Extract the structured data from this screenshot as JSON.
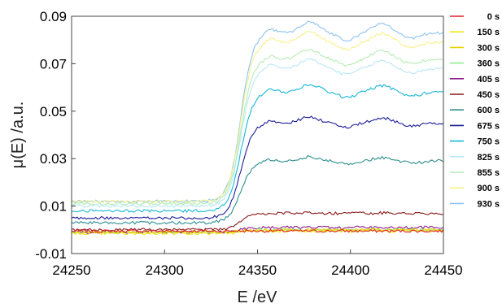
{
  "chart_data": {
    "type": "line",
    "xlabel": "E /eV",
    "ylabel": "μ(E) /a.u.",
    "xlim": [
      24250,
      24450
    ],
    "ylim": [
      -0.01,
      0.09
    ],
    "xticks": [
      "24250",
      "24300",
      "24350",
      "24400",
      "24450"
    ],
    "yticks": [
      "-0.01",
      "0.01",
      "0.03",
      "0.05",
      "0.07",
      "0.09"
    ],
    "grid": false,
    "legend_position": "right",
    "series": [
      {
        "name": "0 s",
        "color": "#e0202a",
        "pre": -0.0005,
        "post": -0.0005,
        "shape": 0.0
      },
      {
        "name": "150 s",
        "color": "#f2e610",
        "pre": -0.0015,
        "post": -0.0005,
        "shape": 0.0
      },
      {
        "name": "300 s",
        "color": "#e8d000",
        "pre": -0.001,
        "post": 0.0,
        "shape": 0.0
      },
      {
        "name": "360 s",
        "color": "#90ee90",
        "pre": -0.001,
        "post": 0.0,
        "shape": 0.0
      },
      {
        "name": "405 s",
        "color": "#8b1a8b",
        "pre": -0.001,
        "post": 0.001,
        "shape": 0.0
      },
      {
        "name": "450 s",
        "color": "#8b1a1a",
        "pre": 0.0,
        "post": 0.007,
        "shape": 0.3
      },
      {
        "name": "600 s",
        "color": "#2f8f8f",
        "pre": 0.003,
        "post": 0.029,
        "shape": 1.0
      },
      {
        "name": "675 s",
        "color": "#1c1c9a",
        "pre": 0.005,
        "post": 0.045,
        "shape": 1.0
      },
      {
        "name": "750 s",
        "color": "#17b7d6",
        "pre": 0.008,
        "post": 0.058,
        "shape": 1.0
      },
      {
        "name": "825 s",
        "color": "#b9e8f5",
        "pre": 0.01,
        "post": 0.068,
        "shape": 1.0
      },
      {
        "name": "855 s",
        "color": "#b5ecb5",
        "pre": 0.011,
        "post": 0.072,
        "shape": 1.0
      },
      {
        "name": "900 s",
        "color": "#f7f08a",
        "pre": 0.012,
        "post": 0.079,
        "shape": 1.0
      },
      {
        "name": "930 s",
        "color": "#8cc4f2",
        "pre": 0.012,
        "post": 0.083,
        "shape": 1.0
      }
    ]
  }
}
